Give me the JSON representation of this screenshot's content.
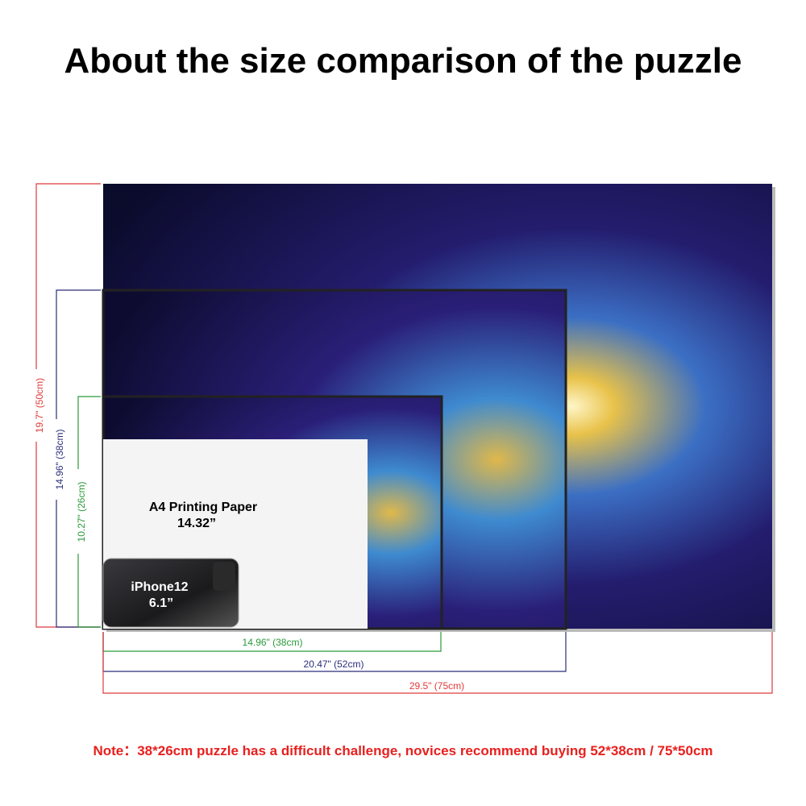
{
  "title": "About the size comparison of the puzzle",
  "vertical_labels": [
    "19.7\" (50cm)",
    "14.96\" (38cm)",
    "10.27\" (26cm)"
  ],
  "horizontal_labels": [
    "14.96\" (38cm)",
    "20.47\" (52cm)",
    "29.5\" (75cm)"
  ],
  "paper": {
    "name": "A4 Printing Paper",
    "size": "14.32”"
  },
  "phone": {
    "name": "iPhone12",
    "size": "6.1”"
  },
  "note": "Note：38*26cm puzzle has a difficult challenge, novices recommend buying 52*38cm / 75*50cm"
}
